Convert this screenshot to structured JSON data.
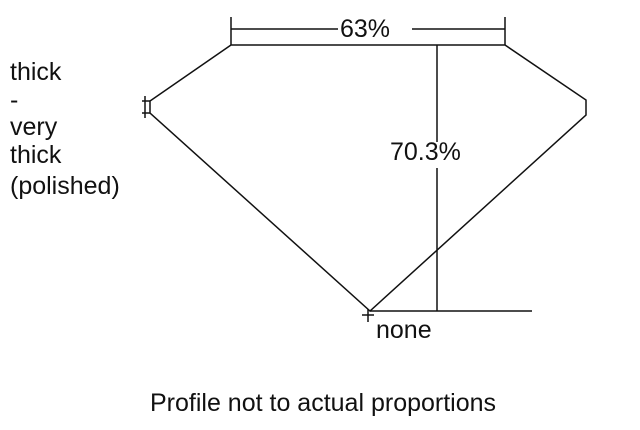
{
  "diagram": {
    "table_percent": "63%",
    "total_depth_percent": "70.3%",
    "culet_label": "none",
    "girdle_label_lines": [
      "thick",
      "-",
      "very",
      "thick",
      "(polished)"
    ],
    "caption": "Profile not to actual proportions",
    "line_color": "#111111"
  }
}
